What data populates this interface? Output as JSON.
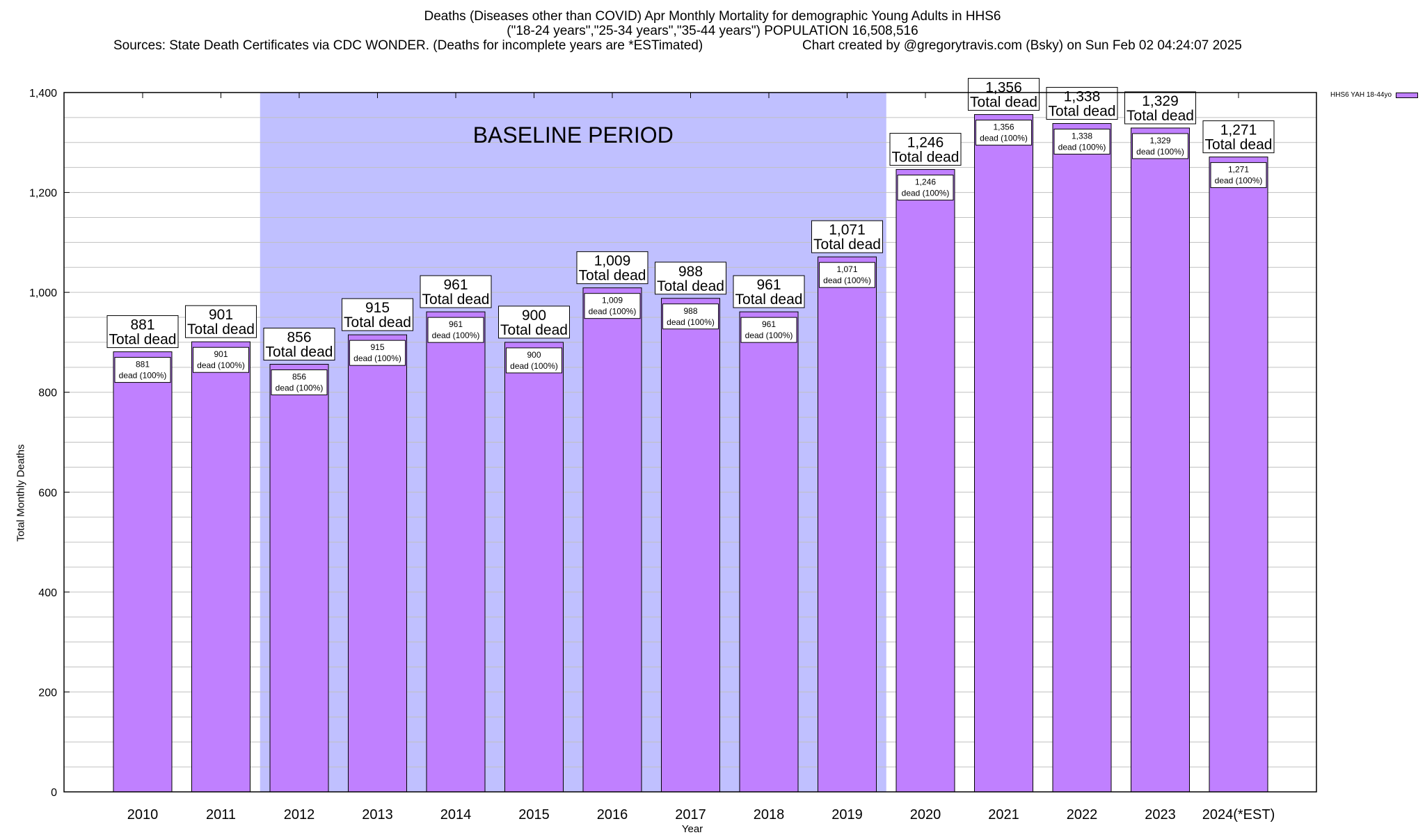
{
  "chart_data": {
    "type": "bar",
    "title": "Deaths (Diseases other than COVID) Apr Monthly Mortality for demographic Young Adults in HHS6",
    "subtitle": "(\"18-24 years\",\"25-34 years\",\"35-44 years\") POPULATION 16,508,516",
    "sources": "Sources: State Death Certificates via CDC WONDER. (Deaths for incomplete years are *ESTimated)",
    "credit": "Chart created by @gregorytravis.com (Bsky) on Sun Feb 02 04:24:07 2025",
    "xlabel": "Year",
    "ylabel": "Total Monthly Deaths",
    "ylim": [
      0,
      1400
    ],
    "yticks": [
      0,
      200,
      400,
      600,
      800,
      1000,
      1200,
      1400
    ],
    "ytick_labels": [
      "0",
      "200",
      "400",
      "600",
      "800",
      "1,000",
      "1,200",
      "1,400"
    ],
    "grid": true,
    "legend": {
      "label": "HHS6 YAH 18-44yo",
      "placement": "top-right"
    },
    "categories": [
      "2010",
      "2011",
      "2012",
      "2013",
      "2014",
      "2015",
      "2016",
      "2017",
      "2018",
      "2019",
      "2020",
      "2021",
      "2022",
      "2023",
      "2024(*EST)"
    ],
    "values": [
      881,
      901,
      856,
      915,
      961,
      900,
      1009,
      988,
      961,
      1071,
      1246,
      1356,
      1338,
      1329,
      1271
    ],
    "value_labels": [
      "881",
      "901",
      "856",
      "915",
      "961",
      "900",
      "1,009",
      "988",
      "961",
      "1,071",
      "1,246",
      "1,356",
      "1,338",
      "1,329",
      "1,271"
    ],
    "total_label_suffix": "Total dead",
    "inner_label_suffix": "dead (100%)",
    "baseline": {
      "label": "BASELINE PERIOD",
      "from": "2012",
      "to": "2019"
    },
    "colors": {
      "bar": "#c080ff",
      "baseline": "#c0c0ff",
      "grid": "#c0c0c0"
    }
  }
}
